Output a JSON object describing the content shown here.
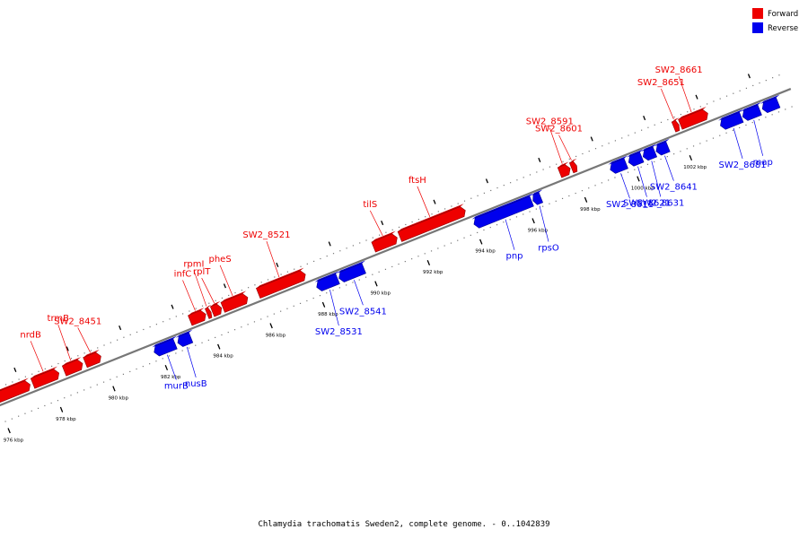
{
  "legend": {
    "forward_label": "Forward",
    "reverse_label": "Reverse",
    "forward_color": "#ee0000",
    "reverse_color": "#0000ee"
  },
  "caption": "Chlamydia trachomatis Sweden2, complete genome. - 0..1042839",
  "axis_ticks": [
    {
      "kbp": 976,
      "label": "976 kbp"
    },
    {
      "kbp": 978,
      "label": "978 kbp"
    },
    {
      "kbp": 980,
      "label": "980 kbp"
    },
    {
      "kbp": 982,
      "label": "982 kbp"
    },
    {
      "kbp": 984,
      "label": "984 kbp"
    },
    {
      "kbp": 986,
      "label": "986 kbp"
    },
    {
      "kbp": 988,
      "label": "988 kbp"
    },
    {
      "kbp": 990,
      "label": "990 kbp"
    },
    {
      "kbp": 992,
      "label": "992 kbp"
    },
    {
      "kbp": 994,
      "label": "994 kbp"
    },
    {
      "kbp": 996,
      "label": "996 kbp"
    },
    {
      "kbp": 998,
      "label": "998 kbp"
    },
    {
      "kbp": 1000,
      "label": "1000 kbp"
    },
    {
      "kbp": 1002,
      "label": "1002 kbp"
    }
  ],
  "forward_genes": [
    {
      "label": "",
      "start_kbp": 975.8,
      "end_kbp": 977.3
    },
    {
      "label": "nrdB",
      "start_kbp": 977.4,
      "end_kbp": 978.4
    },
    {
      "label": "trmB",
      "start_kbp": 978.6,
      "end_kbp": 979.3
    },
    {
      "label": "SW2_8451",
      "start_kbp": 979.4,
      "end_kbp": 980.0
    },
    {
      "label": "infC",
      "start_kbp": 983.4,
      "end_kbp": 984.0
    },
    {
      "label": "rpmI",
      "start_kbp": 984.05,
      "end_kbp": 984.2
    },
    {
      "label": "rplT",
      "start_kbp": 984.25,
      "end_kbp": 984.6
    },
    {
      "label": "pheS",
      "start_kbp": 984.65,
      "end_kbp": 985.6
    },
    {
      "label": "SW2_8521",
      "start_kbp": 986.0,
      "end_kbp": 987.8
    },
    {
      "label": "tilS",
      "start_kbp": 990.4,
      "end_kbp": 991.3
    },
    {
      "label": "ftsH",
      "start_kbp": 991.4,
      "end_kbp": 993.9
    },
    {
      "label": "SW2_8591",
      "start_kbp": 997.5,
      "end_kbp": 997.9
    },
    {
      "label": "SW2_8601",
      "start_kbp": 997.95,
      "end_kbp": 998.15
    },
    {
      "label": "SW2_8651",
      "start_kbp": 1001.85,
      "end_kbp": 1002.05
    },
    {
      "label": "SW2_8661",
      "start_kbp": 1002.1,
      "end_kbp": 1003.15
    }
  ],
  "reverse_genes": [
    {
      "label": "murB",
      "start_kbp": 981.8,
      "end_kbp": 982.6
    },
    {
      "label": "nusB",
      "start_kbp": 982.7,
      "end_kbp": 983.2
    },
    {
      "label": "SW2_8531",
      "start_kbp": 988.0,
      "end_kbp": 988.8
    },
    {
      "label": "SW2_8541",
      "start_kbp": 988.85,
      "end_kbp": 989.8
    },
    {
      "label": "pnp",
      "start_kbp": 994.0,
      "end_kbp": 996.2
    },
    {
      "label": "rpsO",
      "start_kbp": 996.25,
      "end_kbp": 996.55
    },
    {
      "label": "SW2_8611",
      "start_kbp": 999.2,
      "end_kbp": 999.8
    },
    {
      "label": "SW2_8621",
      "start_kbp": 999.9,
      "end_kbp": 1000.4
    },
    {
      "label": "SW2_8631",
      "start_kbp": 1000.45,
      "end_kbp": 1000.9
    },
    {
      "label": "SW2_8641",
      "start_kbp": 1000.95,
      "end_kbp": 1001.4
    },
    {
      "label": "SW2_8681",
      "start_kbp": 1003.4,
      "end_kbp": 1004.2
    },
    {
      "label": "map",
      "start_kbp": 1004.25,
      "end_kbp": 1004.9
    },
    {
      "label": "",
      "start_kbp": 1005.0,
      "end_kbp": 1005.6
    }
  ]
}
